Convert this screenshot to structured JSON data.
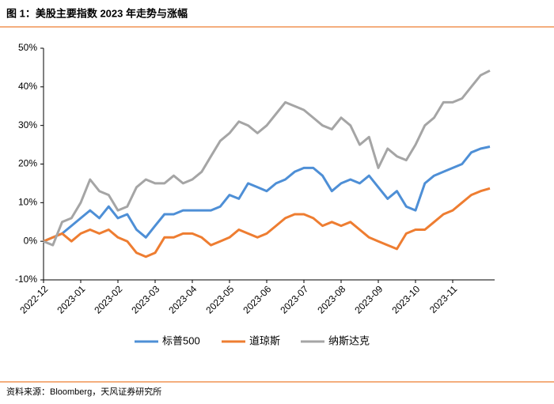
{
  "chart_data": {
    "type": "line",
    "title": "图 1：美股主要指数 2023 年走势与涨幅",
    "source": "资料来源：Bloomberg，天风证券研究所",
    "categories": [
      "2022-12",
      null,
      null,
      null,
      "2023-01",
      null,
      null,
      null,
      "2023-02",
      null,
      null,
      null,
      "2023-03",
      null,
      null,
      null,
      "2023-04",
      null,
      null,
      null,
      "2023-05",
      null,
      null,
      null,
      "2023-06",
      null,
      null,
      null,
      "2023-07",
      null,
      null,
      null,
      "2023-08",
      null,
      null,
      null,
      "2023-09",
      null,
      null,
      null,
      "2023-10",
      null,
      null,
      null,
      "2023-11",
      null,
      null,
      null,
      null
    ],
    "series": [
      {
        "name": "标普500",
        "color": "#4e8fd6",
        "values": [
          0,
          1,
          2,
          4,
          6,
          8,
          6,
          9,
          6,
          7,
          3,
          1,
          4,
          7,
          7,
          8,
          8,
          8,
          8,
          9,
          12,
          11,
          15,
          14,
          13,
          15,
          16,
          18,
          19,
          19,
          17,
          13,
          15,
          16,
          15,
          17,
          14,
          11,
          13,
          9,
          8,
          15,
          17,
          18,
          19,
          20,
          23,
          24,
          24.5
        ]
      },
      {
        "name": "道琼斯",
        "color": "#ee7d31",
        "values": [
          0,
          1,
          2,
          0,
          2,
          3,
          2,
          3,
          1,
          0,
          -3,
          -4,
          -3,
          1,
          1,
          2,
          2,
          1,
          -1,
          0,
          1,
          3,
          2,
          1,
          2,
          4,
          6,
          7,
          7,
          6,
          4,
          5,
          4,
          5,
          3,
          1,
          0,
          -1,
          -2,
          2,
          3,
          3,
          5,
          7,
          8,
          10,
          12,
          13,
          13.7
        ]
      },
      {
        "name": "纳斯达克",
        "color": "#a5a5a5",
        "values": [
          0,
          -1,
          5,
          6,
          10,
          16,
          13,
          12,
          8,
          9,
          14,
          16,
          15,
          15,
          17,
          15,
          16,
          18,
          22,
          26,
          28,
          31,
          30,
          28,
          30,
          33,
          36,
          35,
          34,
          32,
          30,
          29,
          32,
          30,
          25,
          27,
          19,
          24,
          22,
          21,
          25,
          30,
          32,
          36,
          36,
          37,
          40,
          43,
          44.2
        ]
      }
    ],
    "ylim": [
      -10,
      50
    ],
    "yticks": [
      {
        "value": -10,
        "label": "-10%"
      },
      {
        "value": 0,
        "label": "0%"
      },
      {
        "value": 10,
        "label": "10%"
      },
      {
        "value": 20,
        "label": "20%"
      },
      {
        "value": 30,
        "label": "30%"
      },
      {
        "value": 40,
        "label": "40%"
      },
      {
        "value": 50,
        "label": "50%"
      }
    ],
    "legend": "bottom"
  }
}
